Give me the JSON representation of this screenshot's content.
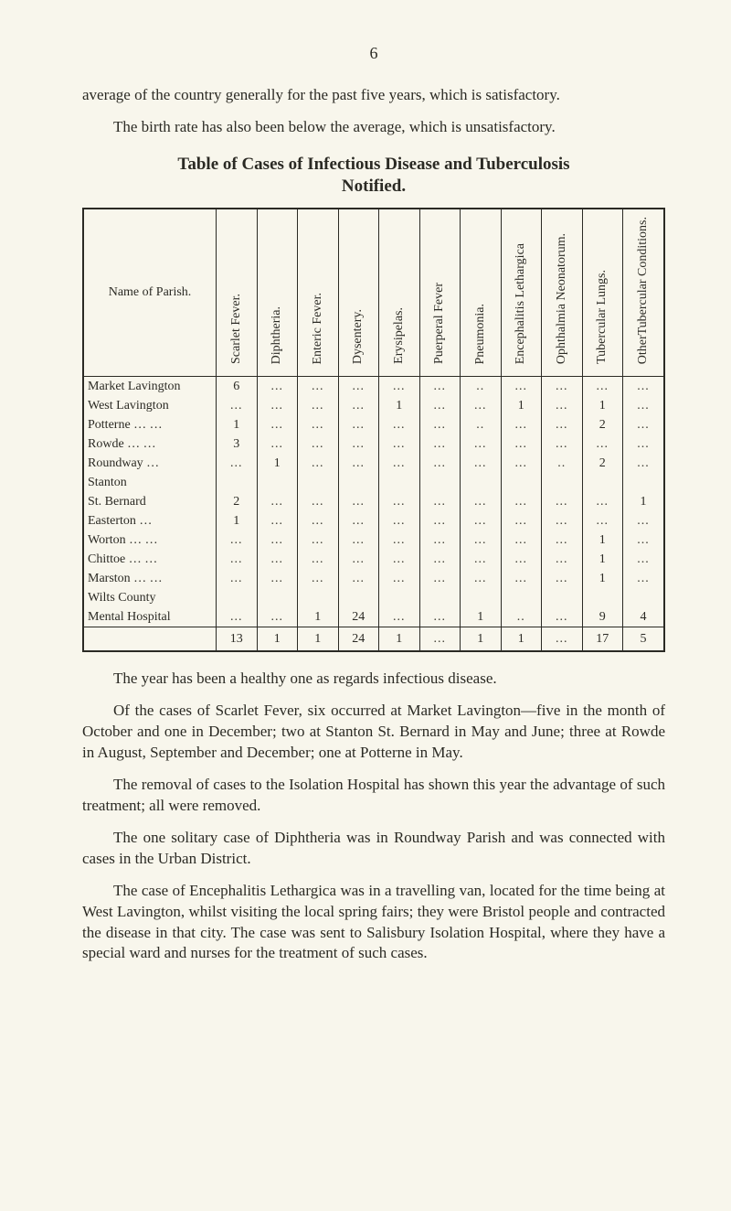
{
  "page_number": "6",
  "paragraphs_top": [
    "average of the country generally for the past five years, which is satisfactory.",
    "The birth rate has also been below the average, which is unsatisfactory."
  ],
  "table": {
    "title": "Table of Cases of Infectious Disease and Tuberculosis",
    "subtitle": "Notified.",
    "row_header": "Name of Parish.",
    "columns": [
      "Scarlet Fever.",
      "Diphtheria.",
      "Enteric Fever.",
      "Dysentery.",
      "Erysipelas.",
      "Puerperal Fever",
      "Pneumonia.",
      "Encephalitis Lethargica",
      "Ophthalmia Neonatorum.",
      "Tubercular Lungs.",
      "OtherTubercular Conditions."
    ],
    "rows": [
      {
        "parish": "Market Lavington",
        "cells": [
          "6",
          "…",
          "…",
          "…",
          "…",
          "…",
          "..",
          "…",
          "…",
          "…",
          "…"
        ]
      },
      {
        "parish": "West Lavington",
        "cells": [
          "…",
          "…",
          "…",
          "…",
          "1",
          "…",
          "…",
          "1",
          "…",
          "1",
          "…"
        ]
      },
      {
        "parish": "Potterne …   …",
        "cells": [
          "1",
          "…",
          "…",
          "…",
          "…",
          "…",
          "..",
          "…",
          "…",
          "2",
          "…"
        ]
      },
      {
        "parish": "Rowde   …   …",
        "cells": [
          "3",
          "…",
          "…",
          "…",
          "…",
          "…",
          "…",
          "…",
          "…",
          "…",
          "…"
        ]
      },
      {
        "parish": "Roundway      …",
        "cells": [
          "…",
          "1",
          "…",
          "…",
          "…",
          "…",
          "…",
          "…",
          "..",
          "2",
          "…"
        ]
      },
      {
        "parish": "Stanton",
        "cells": [
          "",
          "",
          "",
          "",
          "",
          "",
          "",
          "",
          "",
          "",
          ""
        ]
      },
      {
        "parish": "      St. Bernard",
        "cells": [
          "2",
          "…",
          "…",
          "…",
          "…",
          "…",
          "…",
          "…",
          "…",
          "…",
          "1"
        ]
      },
      {
        "parish": "Easterton      …",
        "cells": [
          "1",
          "…",
          "…",
          "…",
          "…",
          "…",
          "…",
          "…",
          "…",
          "…",
          "…"
        ]
      },
      {
        "parish": "Worton  …   …",
        "cells": [
          "…",
          "…",
          "…",
          "…",
          "…",
          "…",
          "…",
          "…",
          "…",
          "1",
          "…"
        ]
      },
      {
        "parish": "Chittoe  …   …",
        "cells": [
          "…",
          "…",
          "…",
          "…",
          "…",
          "…",
          "…",
          "…",
          "…",
          "1",
          "…"
        ]
      },
      {
        "parish": "Marston …   …",
        "cells": [
          "…",
          "…",
          "…",
          "…",
          "…",
          "…",
          "…",
          "…",
          "…",
          "1",
          "…"
        ]
      },
      {
        "parish": "Wilts County",
        "cells": [
          "",
          "",
          "",
          "",
          "",
          "",
          "",
          "",
          "",
          "",
          ""
        ]
      },
      {
        "parish": "   Mental Hospital",
        "cells": [
          "…",
          "…",
          "1",
          "24",
          "…",
          "…",
          "1",
          "..",
          "…",
          "9",
          "4"
        ]
      }
    ],
    "totals": [
      "13",
      "1",
      "1",
      "24",
      "1",
      "…",
      "1",
      "1",
      "…",
      "17",
      "5"
    ]
  },
  "paragraphs_bottom": [
    "The year has been a healthy one as regards infectious disease.",
    "Of the cases of Scarlet Fever, six occurred at Market Lavington—five in the month of October and one in December; two at Stanton St. Bernard in May and June; three at Rowde in August, September and December; one at Potterne in May.",
    "The removal of cases to the Isolation Hospital has shown this year the advantage of such treatment; all were removed.",
    "The one solitary case of Diphtheria was in Roundway Parish and was connected with cases in the Urban District.",
    "The case of Encephalitis Lethargica was in a travelling van, located for the time being at West Lavington, whilst visiting the local spring fairs; they were Bristol people and contracted the disease in that city. The case was sent to Salisbury Isolation Hospital, where they have a special ward and nurses for the treatment of such cases."
  ]
}
